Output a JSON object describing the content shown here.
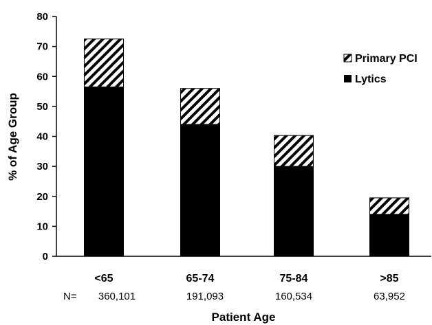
{
  "chart_data": {
    "type": "bar",
    "stacked": true,
    "categories": [
      "<65",
      "65-74",
      "75-84",
      ">85"
    ],
    "sample_size_prefix": "N=",
    "sample_sizes": [
      "360,101",
      "191,093",
      "160,534",
      "63,952"
    ],
    "series": [
      {
        "name": "Lytics",
        "values": [
          56.5,
          44.0,
          30.0,
          14.0
        ],
        "fill": "#000000",
        "pattern": "solid"
      },
      {
        "name": "Primary PCI",
        "values": [
          16.0,
          12.0,
          10.3,
          5.5
        ],
        "fill": "#000000",
        "pattern": "diagonal-hatch"
      }
    ],
    "xlabel": "Patient Age",
    "ylabel": "% of Age Group",
    "ylim": [
      0,
      80
    ],
    "yticks": [
      0,
      10,
      20,
      30,
      40,
      50,
      60,
      70,
      80
    ],
    "grid": false,
    "legend_position": "top-right",
    "legend_order": [
      "Primary PCI",
      "Lytics"
    ]
  }
}
